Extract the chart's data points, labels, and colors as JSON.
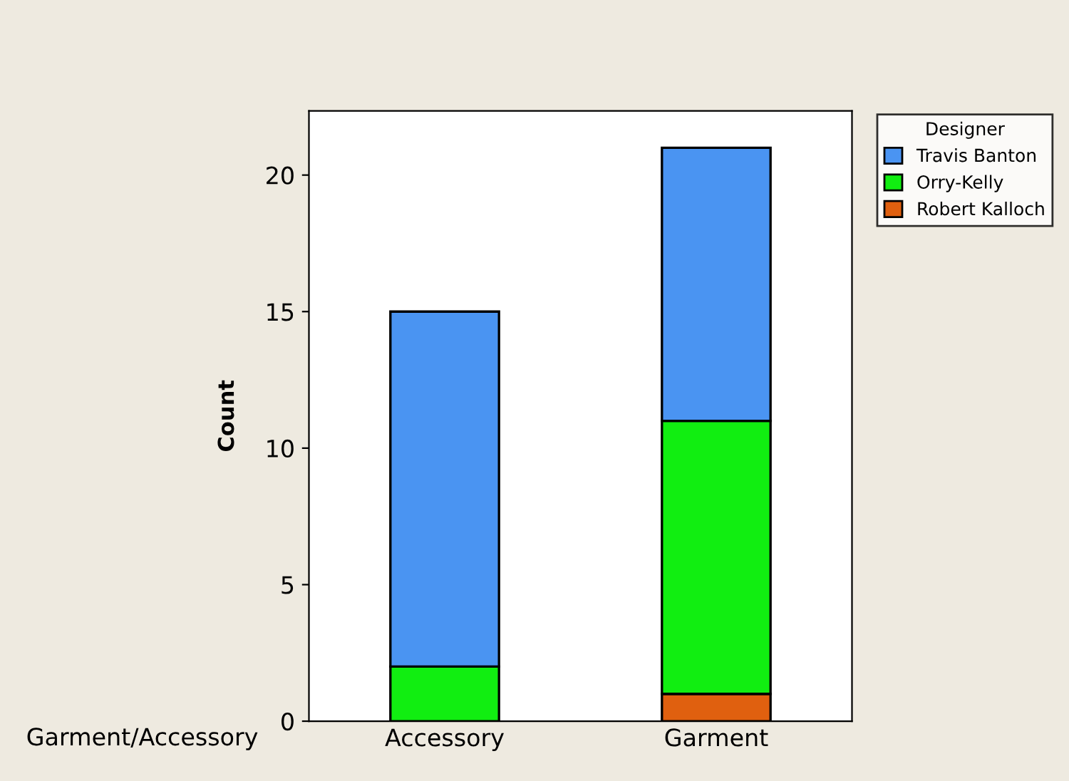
{
  "chart_data": {
    "type": "bar",
    "stacked": true,
    "xlabel": "Garment/Accessory",
    "ylabel": "Count",
    "legend_title": "Designer",
    "legend": "top right",
    "categories": [
      "Accessory",
      "Garment"
    ],
    "series": [
      {
        "name": "Robert Kalloch",
        "color": "#e0600f",
        "values": [
          0,
          1
        ]
      },
      {
        "name": "Orry-Kelly",
        "color": "#11ee11",
        "values": [
          2,
          10
        ]
      },
      {
        "name": "Travis Banton",
        "color": "#4a94f2",
        "values": [
          13,
          10
        ]
      }
    ],
    "ylim": [
      0,
      22.35
    ],
    "yticks": [
      0,
      5,
      10,
      15,
      20
    ],
    "grid": false
  }
}
